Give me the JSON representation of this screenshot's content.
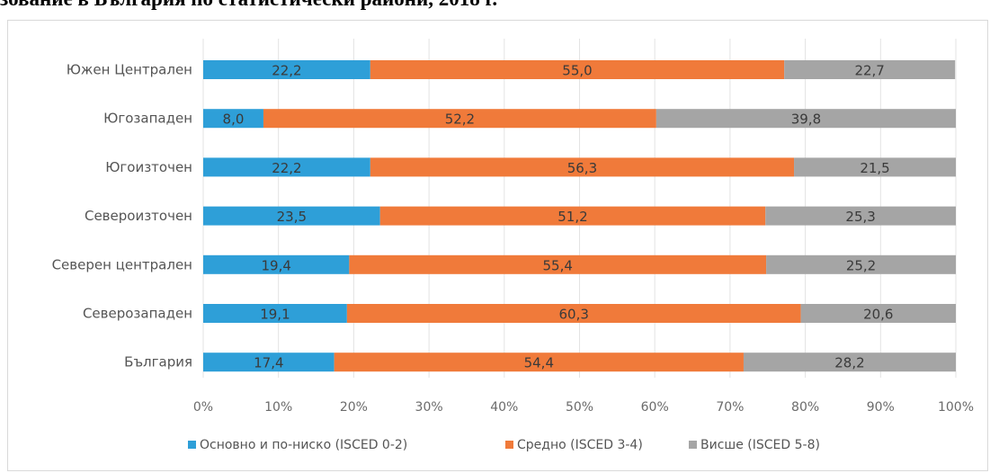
{
  "page": {
    "heading": "зование в България по статистически райони, 2018 г."
  },
  "chart_data": {
    "type": "bar",
    "orientation": "horizontal",
    "stacked": "percent",
    "categories": [
      "Южен Централен",
      "Югозападен",
      "Югоизточен",
      "Североизточен",
      "Северен централен",
      "Северозападен",
      "България"
    ],
    "series": [
      {
        "name": "Основно и по-ниско (ISCED 0-2)",
        "color": "#2e9fd8",
        "values": [
          22.2,
          8.0,
          22.2,
          23.5,
          19.4,
          19.1,
          17.4
        ],
        "labels": [
          "22,2",
          "8,0",
          "22,2",
          "23,5",
          "19,4",
          "19,1",
          "17,4"
        ]
      },
      {
        "name": "Средно (ISCED 3-4)",
        "color": "#f07a3a",
        "values": [
          55.0,
          52.2,
          56.3,
          51.2,
          55.4,
          60.3,
          54.4
        ],
        "labels": [
          "55,0",
          "52,2",
          "56,3",
          "51,2",
          "55,4",
          "60,3",
          "54,4"
        ]
      },
      {
        "name": "Висше (ISCED 5-8)",
        "color": "#a5a5a5",
        "values": [
          22.7,
          39.8,
          21.5,
          25.3,
          25.2,
          20.6,
          28.2
        ],
        "labels": [
          "22,7",
          "39,8",
          "21,5",
          "25,3",
          "25,2",
          "20,6",
          "28,2"
        ]
      }
    ],
    "x_ticks": [
      "0%",
      "10%",
      "20%",
      "30%",
      "40%",
      "50%",
      "60%",
      "70%",
      "80%",
      "90%",
      "100%"
    ],
    "xlim": [
      0,
      100
    ],
    "grid": true,
    "legend_position": "bottom",
    "title": "",
    "xlabel": "",
    "ylabel": ""
  }
}
